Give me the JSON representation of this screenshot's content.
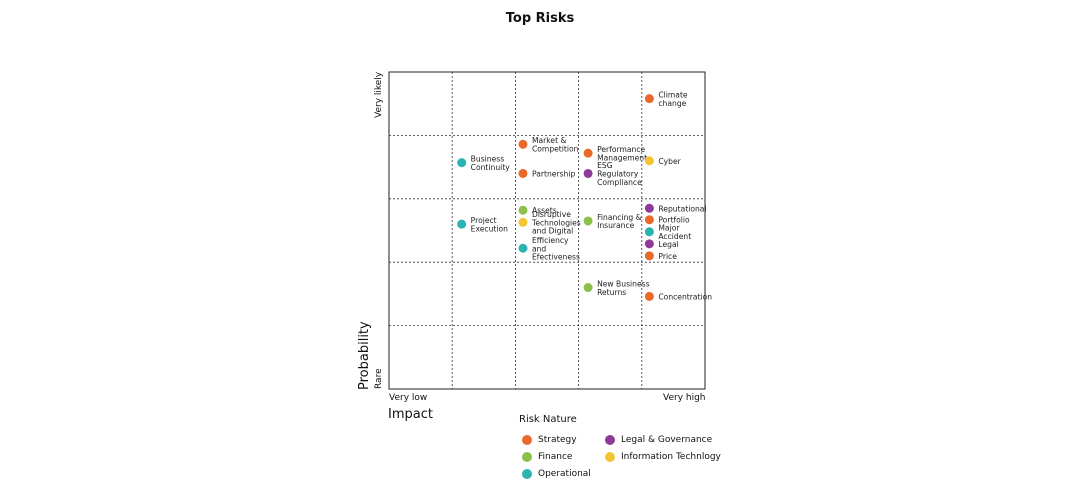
{
  "chart_data": {
    "type": "scatter",
    "title": "Top Risks",
    "xlabel": "Impact",
    "ylabel": "Probability",
    "x_tick_labels": {
      "low": "Very low",
      "high": "Very high"
    },
    "y_tick_labels": {
      "low": "Rare",
      "high": "Very likely"
    },
    "xlim": [
      0,
      5
    ],
    "ylim": [
      0,
      5
    ],
    "grid": true,
    "legend": {
      "title": "Risk Nature",
      "placement": "bottom",
      "entries": [
        {
          "name": "Strategy",
          "color": "#e8692a"
        },
        {
          "name": "Legal & Governance",
          "color": "#8e3a96"
        },
        {
          "name": "Finance",
          "color": "#8cc04b"
        },
        {
          "name": "Information Technlogy",
          "color": "#f4c532"
        },
        {
          "name": "Operational",
          "color": "#2bb3b1"
        }
      ]
    },
    "points": [
      {
        "label": "Climate change",
        "category": "Strategy",
        "x": 4.12,
        "y": 4.58
      },
      {
        "label": "Market & Competition",
        "category": "Strategy",
        "x": 2.12,
        "y": 3.86
      },
      {
        "label": "Partnership",
        "category": "Strategy",
        "x": 2.12,
        "y": 3.4
      },
      {
        "label": "Performance Management",
        "category": "Strategy",
        "x": 3.15,
        "y": 3.72
      },
      {
        "label": "ESG Regulatory Compliance",
        "category": "Legal & Governance",
        "x": 3.15,
        "y": 3.4
      },
      {
        "label": "Cyber",
        "category": "Information Technlogy",
        "x": 4.12,
        "y": 3.6
      },
      {
        "label": "Business Continuity",
        "category": "Operational",
        "x": 1.15,
        "y": 3.57
      },
      {
        "label": "Project Execution",
        "category": "Operational",
        "x": 1.15,
        "y": 2.6
      },
      {
        "label": "Assets",
        "category": "Finance",
        "x": 2.12,
        "y": 2.82
      },
      {
        "label": "Disruptive Technologies and Digital",
        "category": "Information Technlogy",
        "x": 2.12,
        "y": 2.63
      },
      {
        "label": "Efficiency and Efectiveness",
        "category": "Operational",
        "x": 2.12,
        "y": 2.22
      },
      {
        "label": "Financing & Insurance",
        "category": "Finance",
        "x": 3.15,
        "y": 2.65
      },
      {
        "label": "Reputational",
        "category": "Legal & Governance",
        "x": 4.12,
        "y": 2.85
      },
      {
        "label": "Portfolio",
        "category": "Strategy",
        "x": 4.12,
        "y": 2.67
      },
      {
        "label": "Major Accident",
        "category": "Operational",
        "x": 4.12,
        "y": 2.48
      },
      {
        "label": "Legal",
        "category": "Legal & Governance",
        "x": 4.12,
        "y": 2.29
      },
      {
        "label": "Price",
        "category": "Strategy",
        "x": 4.12,
        "y": 2.1
      },
      {
        "label": "New Business Returns",
        "category": "Finance",
        "x": 3.15,
        "y": 1.6
      },
      {
        "label": "Concentration",
        "category": "Strategy",
        "x": 4.12,
        "y": 1.46
      }
    ]
  }
}
